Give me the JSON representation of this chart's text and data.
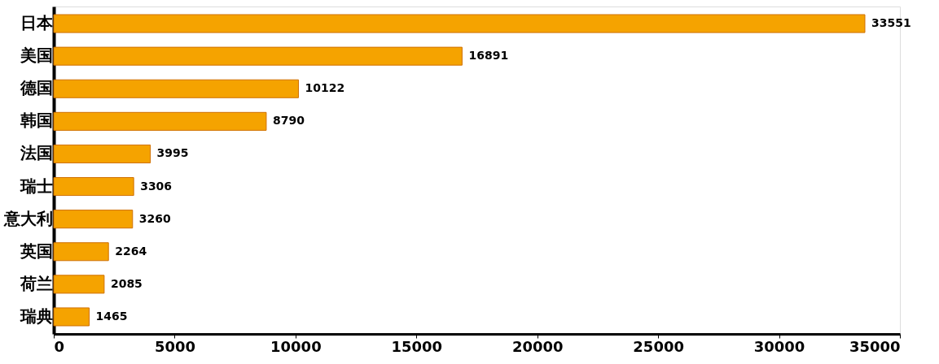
{
  "chart_data": {
    "type": "bar",
    "orientation": "horizontal",
    "categories": [
      "日本",
      "美国",
      "德国",
      "韩国",
      "法国",
      "瑞士",
      "意大利",
      "英国",
      "荷兰",
      "瑞典"
    ],
    "values": [
      33551,
      16891,
      10122,
      8790,
      3995,
      3306,
      3260,
      2264,
      2085,
      1465
    ],
    "color": "#f5a300",
    "xlim": [
      0,
      35000
    ],
    "xticks": [
      0,
      5000,
      10000,
      15000,
      20000,
      25000,
      30000,
      35000
    ],
    "data_labels": true
  }
}
